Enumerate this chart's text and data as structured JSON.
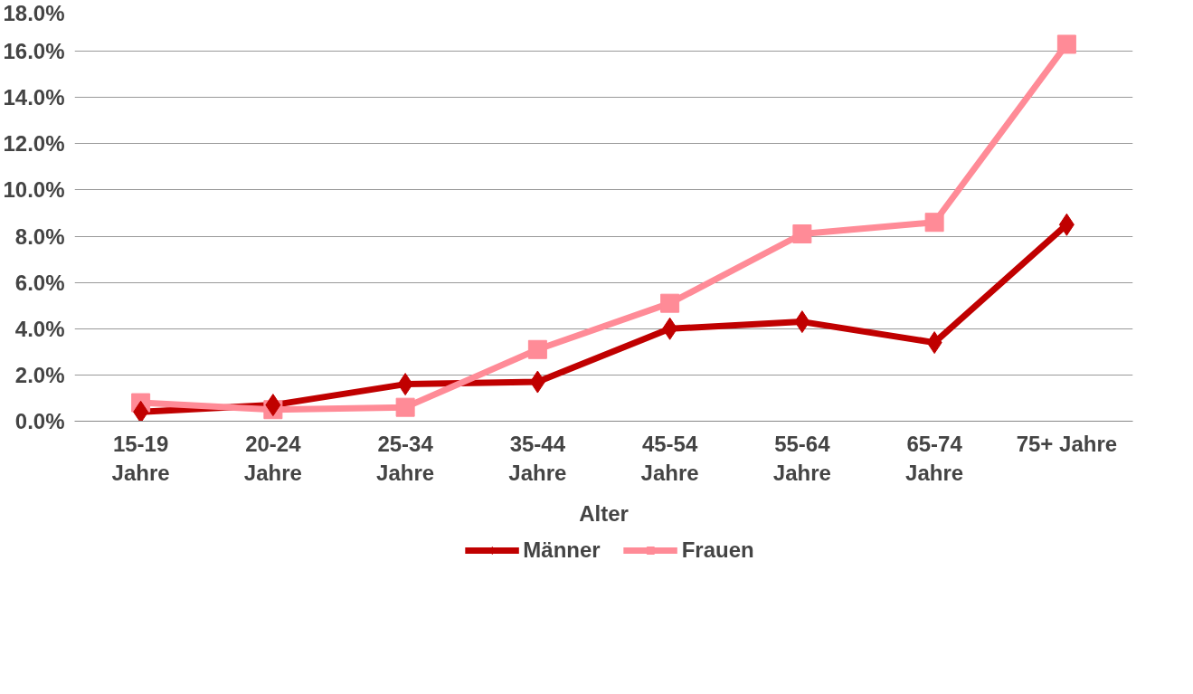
{
  "chart_data": {
    "type": "line",
    "xlabel": "Alter",
    "categories": [
      "15-19 Jahre",
      "20-24 Jahre",
      "25-34 Jahre",
      "35-44 Jahre",
      "45-54 Jahre",
      "55-64 Jahre",
      "65-74 Jahre",
      "75+ Jahre"
    ],
    "series": [
      {
        "name": "Männer",
        "color": "#c00000",
        "marker": "diamond",
        "values": [
          0.4,
          0.7,
          1.6,
          1.7,
          4.0,
          4.3,
          3.4,
          8.5
        ]
      },
      {
        "name": "Frauen",
        "color": "#ff8b97",
        "marker": "square",
        "values": [
          0.8,
          0.5,
          0.6,
          3.1,
          5.1,
          8.1,
          8.6,
          16.3
        ]
      }
    ],
    "ylim": [
      0,
      18
    ],
    "yticks": [
      {
        "value": 0,
        "label": "0.0%"
      },
      {
        "value": 2,
        "label": "2.0%"
      },
      {
        "value": 4,
        "label": "4.0%"
      },
      {
        "value": 6,
        "label": "6.0%"
      },
      {
        "value": 8,
        "label": "8.0%"
      },
      {
        "value": 10,
        "label": "10.0%"
      },
      {
        "value": 12,
        "label": "12.0%"
      },
      {
        "value": 14,
        "label": "14.0%"
      },
      {
        "value": 16,
        "label": "16.0%"
      },
      {
        "value": 18,
        "label": "18.0%"
      }
    ],
    "grid": "y",
    "legend": "bottom",
    "line_style": "solid"
  }
}
